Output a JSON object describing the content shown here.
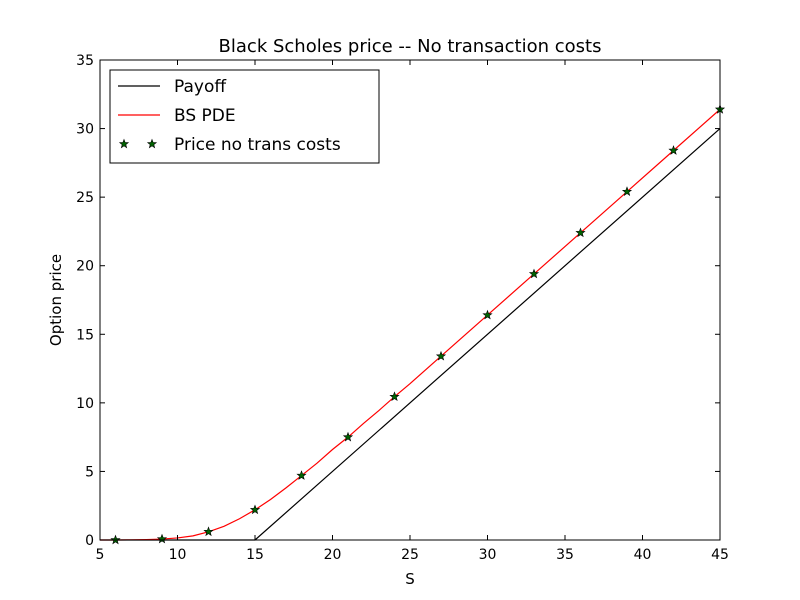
{
  "chart_data": {
    "type": "line",
    "title": "Black Scholes price -- No transaction costs",
    "xlabel": "S",
    "ylabel": "Option price",
    "xlim": [
      5,
      45
    ],
    "ylim": [
      0,
      35
    ],
    "xticks": [
      5,
      10,
      15,
      20,
      25,
      30,
      35,
      40,
      45
    ],
    "yticks": [
      0,
      5,
      10,
      15,
      20,
      25,
      30,
      35
    ],
    "grid": false,
    "legend_position": "top-left",
    "series": [
      {
        "name": "Payoff",
        "kind": "line",
        "color": "#000000",
        "x": [
          5,
          15,
          45
        ],
        "y": [
          0,
          0,
          30
        ]
      },
      {
        "name": "BS PDE",
        "kind": "line",
        "color": "#ff0000",
        "x": [
          5,
          6,
          7,
          8,
          9,
          10,
          11,
          12,
          13,
          14,
          15,
          16,
          17,
          18,
          19,
          20,
          21,
          22,
          23,
          24,
          25,
          27,
          30,
          33,
          36,
          39,
          42,
          45
        ],
        "y": [
          0,
          0,
          0.01,
          0.03,
          0.07,
          0.15,
          0.3,
          0.6,
          1.0,
          1.55,
          2.2,
          2.95,
          3.8,
          4.7,
          5.6,
          6.6,
          7.5,
          8.5,
          9.45,
          10.45,
          11.4,
          13.4,
          16.4,
          19.4,
          22.4,
          25.4,
          28.4,
          31.4
        ]
      },
      {
        "name": "Price no trans costs",
        "kind": "scatter",
        "color": "#006400",
        "edge_color": "#000000",
        "marker": "star",
        "x": [
          6,
          9,
          12,
          15,
          18,
          21,
          24,
          27,
          30,
          33,
          36,
          39,
          42,
          45
        ],
        "y": [
          0,
          0.07,
          0.6,
          2.2,
          4.7,
          7.5,
          10.45,
          13.4,
          16.4,
          19.4,
          22.4,
          25.4,
          28.4,
          31.4
        ]
      }
    ]
  }
}
